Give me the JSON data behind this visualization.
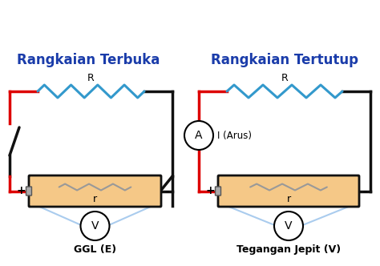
{
  "title_left": "Rangkaian Terbuka",
  "title_right": "Rangkaian Tertutup",
  "title_color": "#1a3caa",
  "title_fontsize": 12,
  "label_R": "R",
  "label_r": "r",
  "label_plus": "+",
  "label_minus": "-",
  "label_V_bottom_left": "GGL (E)",
  "label_V_bottom_right": "Tegangan Jepit (V)",
  "label_A": "A",
  "label_I": "I (Arus)",
  "wire_color_black": "#111111",
  "wire_color_red": "#dd0000",
  "wire_color_blue": "#3399cc",
  "wire_color_lightblue": "#aaccee",
  "battery_fill": "#f5c887",
  "battery_border": "#111111",
  "background": "#ffffff"
}
